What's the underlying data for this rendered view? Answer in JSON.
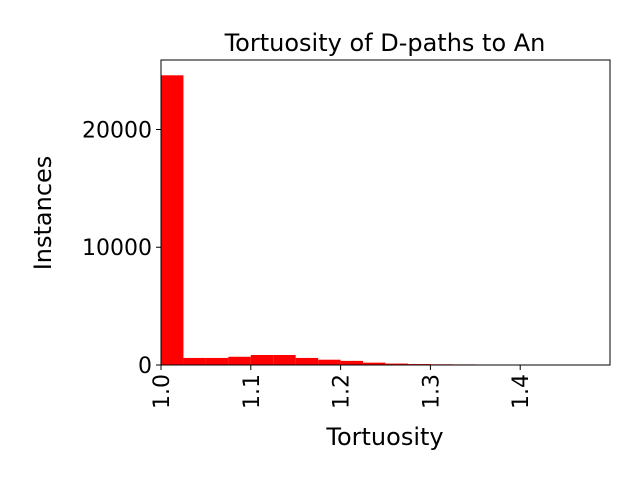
{
  "chart_data": {
    "type": "bar",
    "title": "Tortuosity of D-paths to An",
    "xlabel": "Tortuosity",
    "ylabel": "Instances",
    "xlim": [
      1.0,
      1.5
    ],
    "ylim": [
      0,
      25900
    ],
    "xticks": [
      "1.0",
      "1.1",
      "1.2",
      "1.3",
      "1.4"
    ],
    "xtick_values": [
      1.0,
      1.1,
      1.2,
      1.3,
      1.4
    ],
    "yticks": [
      "0",
      "10000",
      "20000"
    ],
    "ytick_values": [
      0,
      10000,
      20000
    ],
    "grid": false,
    "bar_color": "#ff0000",
    "bins": [
      {
        "x0": 1.0,
        "x1": 1.025,
        "value": 24600
      },
      {
        "x0": 1.025,
        "x1": 1.05,
        "value": 600
      },
      {
        "x0": 1.05,
        "x1": 1.075,
        "value": 600
      },
      {
        "x0": 1.075,
        "x1": 1.1,
        "value": 700
      },
      {
        "x0": 1.1,
        "x1": 1.125,
        "value": 850
      },
      {
        "x0": 1.125,
        "x1": 1.15,
        "value": 850
      },
      {
        "x0": 1.15,
        "x1": 1.175,
        "value": 600
      },
      {
        "x0": 1.175,
        "x1": 1.2,
        "value": 450
      },
      {
        "x0": 1.2,
        "x1": 1.225,
        "value": 350
      },
      {
        "x0": 1.225,
        "x1": 1.25,
        "value": 200
      },
      {
        "x0": 1.25,
        "x1": 1.275,
        "value": 120
      },
      {
        "x0": 1.275,
        "x1": 1.3,
        "value": 80
      },
      {
        "x0": 1.3,
        "x1": 1.325,
        "value": 60
      },
      {
        "x0": 1.325,
        "x1": 1.35,
        "value": 50
      },
      {
        "x0": 1.35,
        "x1": 1.375,
        "value": 40
      },
      {
        "x0": 1.375,
        "x1": 1.4,
        "value": 35
      },
      {
        "x0": 1.4,
        "x1": 1.425,
        "value": 30
      },
      {
        "x0": 1.425,
        "x1": 1.45,
        "value": 25
      },
      {
        "x0": 1.45,
        "x1": 1.475,
        "value": 20
      },
      {
        "x0": 1.475,
        "x1": 1.5,
        "value": 20
      }
    ]
  }
}
